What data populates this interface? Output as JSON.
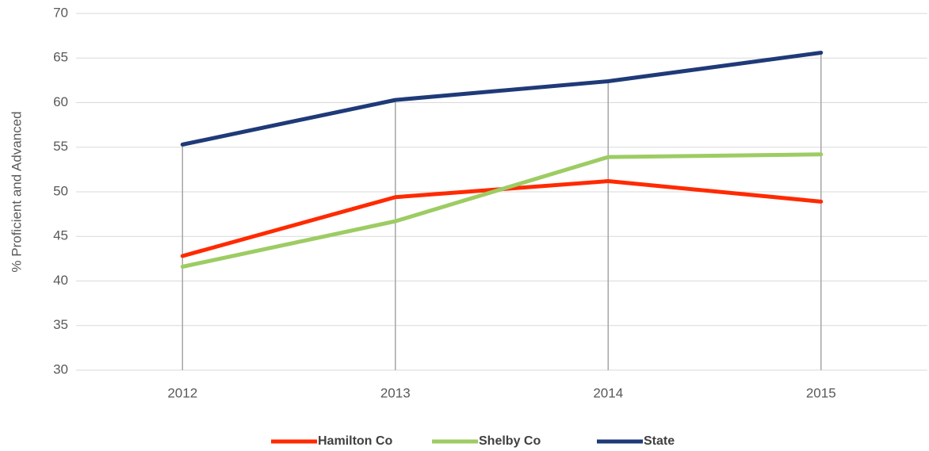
{
  "chart_data": {
    "type": "line",
    "y_label": "% Proficient and Advanced",
    "categories": [
      "2012",
      "2013",
      "2014",
      "2015"
    ],
    "series": [
      {
        "name": "Hamilton Co",
        "color": "#ff2a00",
        "values": [
          42.8,
          49.4,
          51.2,
          48.9
        ]
      },
      {
        "name": "Shelby Co",
        "color": "#9dcc63",
        "values": [
          41.6,
          46.7,
          53.9,
          54.2
        ]
      },
      {
        "name": "State",
        "color": "#1f3a78",
        "values": [
          55.3,
          60.3,
          62.4,
          65.6
        ]
      }
    ],
    "ylim": [
      30,
      70
    ],
    "yticks": [
      30,
      35,
      40,
      45,
      50,
      55,
      60,
      65,
      70
    ],
    "grid": true,
    "drop_lines": true,
    "legend": "bottom"
  }
}
